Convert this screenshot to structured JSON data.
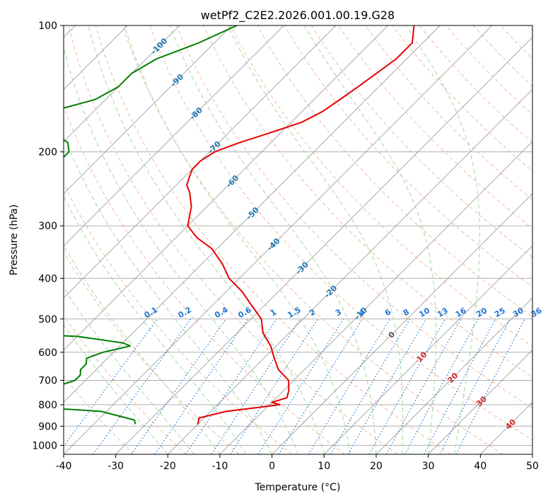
{
  "chart_data": {
    "type": "line",
    "title": "wetPf2_C2E2.2026.001.00.19.G28",
    "xlabel": "Temperature (°C)",
    "ylabel": "Pressure (hPa)",
    "xlim": [
      -40,
      50
    ],
    "ylim": [
      1050,
      100
    ],
    "y_scale": "log",
    "x_ticks": [
      -40,
      -30,
      -20,
      -10,
      0,
      10,
      20,
      30,
      40,
      50
    ],
    "y_ticks": [
      100,
      200,
      300,
      400,
      500,
      600,
      700,
      800,
      900,
      1000
    ],
    "grid": true,
    "colors": {
      "temperature": "#e60000",
      "dewpoint": "#008000",
      "isotherm": "#7f7f7f",
      "dry_adiabat": "#f4a582",
      "moist_adiabat": "#a6d5a6",
      "mixing_ratio": "#1f77d4",
      "isotherm_label_cold": "#1f77b4",
      "isotherm_label_warm": "#d62728",
      "freezing_label": "#555555"
    },
    "isotherm_labels": [
      {
        "label": "-100",
        "t": -100,
        "p": 112
      },
      {
        "label": "-90",
        "t": -90,
        "p": 135
      },
      {
        "label": "-80",
        "t": -80,
        "p": 162
      },
      {
        "label": "-70",
        "t": -70,
        "p": 195
      },
      {
        "label": "-60",
        "t": -60,
        "p": 235
      },
      {
        "label": "-50",
        "t": -50,
        "p": 280
      },
      {
        "label": "-40",
        "t": -40,
        "p": 332
      },
      {
        "label": "-30",
        "t": -30,
        "p": 378
      },
      {
        "label": "-20",
        "t": -20,
        "p": 430
      },
      {
        "label": "-10",
        "t": -10,
        "p": 485
      },
      {
        "label": "0",
        "t": 0,
        "p": 545
      },
      {
        "label": "10",
        "t": 10,
        "p": 615
      },
      {
        "label": "20",
        "t": 20,
        "p": 690
      },
      {
        "label": "30",
        "t": 30,
        "p": 785
      },
      {
        "label": "40",
        "t": 40,
        "p": 890
      }
    ],
    "mixing_ratio_labels": [
      "0.1",
      "0.2",
      "0.4",
      "0.6",
      "1",
      "1.5",
      "2",
      "3",
      "4",
      "6",
      "8",
      "10",
      "13",
      "16",
      "20",
      "25",
      "30",
      "36"
    ],
    "mixing_ratio_label_temps": [
      -23,
      -16.5,
      -9.5,
      -5,
      0.5,
      4.5,
      8,
      13,
      17.5,
      22.5,
      26,
      29.5,
      33,
      36.5,
      40.5,
      44,
      47.5,
      51
    ],
    "series": [
      {
        "name": "temperature",
        "values": [
          [
            100,
            -55
          ],
          [
            110,
            -52
          ],
          [
            120,
            -52
          ],
          [
            130,
            -53
          ],
          [
            140,
            -54
          ],
          [
            150,
            -55
          ],
          [
            160,
            -56
          ],
          [
            170,
            -58
          ],
          [
            180,
            -62
          ],
          [
            190,
            -66
          ],
          [
            200,
            -69
          ],
          [
            210,
            -70
          ],
          [
            220,
            -70
          ],
          [
            230,
            -69
          ],
          [
            240,
            -68
          ],
          [
            250,
            -66
          ],
          [
            270,
            -63
          ],
          [
            300,
            -60
          ],
          [
            320,
            -56
          ],
          [
            340,
            -51
          ],
          [
            370,
            -46
          ],
          [
            400,
            -42
          ],
          [
            430,
            -37
          ],
          [
            460,
            -33
          ],
          [
            500,
            -28
          ],
          [
            540,
            -25
          ],
          [
            580,
            -21
          ],
          [
            620,
            -18
          ],
          [
            660,
            -15
          ],
          [
            700,
            -11
          ],
          [
            740,
            -9
          ],
          [
            770,
            -8
          ],
          [
            790,
            -10
          ],
          [
            800,
            -8
          ],
          [
            810,
            -11
          ],
          [
            830,
            -17
          ],
          [
            860,
            -21
          ],
          [
            890,
            -20
          ]
        ]
      },
      {
        "name": "dewpoint",
        "values": [
          [
            100,
            -89
          ],
          [
            110,
            -93
          ],
          [
            120,
            -98
          ],
          [
            130,
            -100
          ],
          [
            140,
            -100
          ],
          [
            150,
            -102
          ],
          [
            160,
            -108
          ],
          [
            165,
            -118
          ],
          [
            170,
            -112
          ],
          [
            180,
            -104
          ],
          [
            190,
            -99
          ],
          [
            200,
            -97
          ],
          [
            210,
            -97
          ],
          [
            230,
            -97
          ],
          [
            250,
            -97
          ],
          [
            270,
            -96
          ],
          [
            290,
            -96
          ],
          [
            310,
            -95
          ],
          [
            330,
            -92
          ],
          [
            350,
            -90
          ],
          [
            370,
            -90
          ],
          [
            390,
            -88
          ],
          [
            410,
            -84
          ],
          [
            430,
            -80
          ],
          [
            460,
            -75
          ],
          [
            480,
            -70
          ],
          [
            490,
            -90
          ],
          [
            530,
            -88
          ],
          [
            550,
            -60
          ],
          [
            570,
            -50
          ],
          [
            580,
            -48
          ],
          [
            600,
            -52
          ],
          [
            620,
            -54
          ],
          [
            640,
            -53
          ],
          [
            660,
            -53
          ],
          [
            680,
            -52
          ],
          [
            700,
            -52
          ],
          [
            720,
            -54
          ],
          [
            740,
            -63
          ],
          [
            760,
            -79
          ],
          [
            770,
            -73
          ],
          [
            785,
            -68
          ],
          [
            800,
            -95
          ],
          [
            810,
            -68
          ],
          [
            820,
            -48
          ],
          [
            830,
            -41
          ],
          [
            850,
            -37
          ],
          [
            870,
            -33
          ],
          [
            890,
            -32
          ]
        ]
      }
    ]
  }
}
